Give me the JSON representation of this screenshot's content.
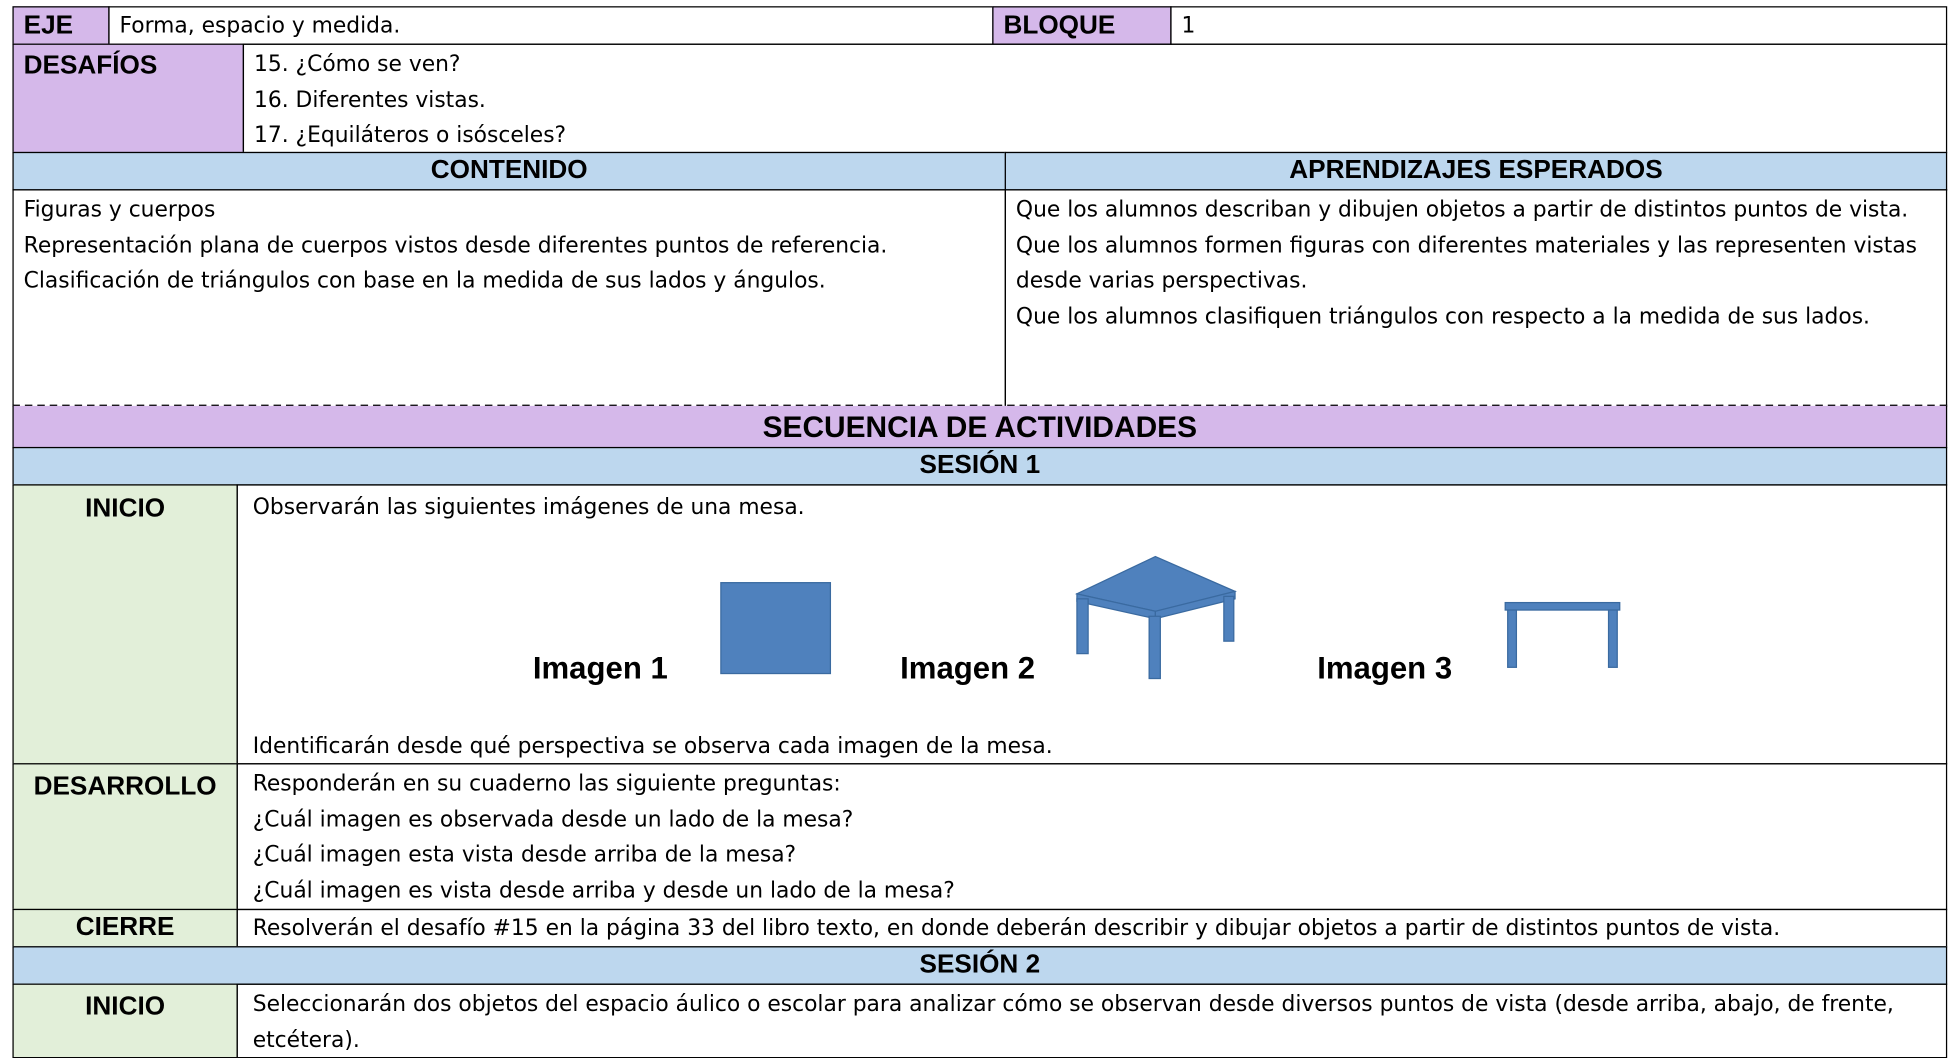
{
  "header": {
    "eje_label": "EJE",
    "eje": "Forma, espacio y medida.",
    "bloque_label": "BLOQUE",
    "bloque": "1"
  },
  "desafios": {
    "label": "DESAFÍOS",
    "items": [
      "15. ¿Cómo se ven?",
      "16. Diferentes vistas.",
      "17. ¿Equiláteros o isósceles?"
    ]
  },
  "contenido": {
    "title": "CONTENIDO",
    "items": [
      "Figuras y cuerpos",
      "Representación plana de cuerpos vistos desde diferentes puntos de referencia.",
      "Clasificación de triángulos con base en la medida de sus lados y ángulos."
    ]
  },
  "aprendizajes": {
    "title": "APRENDIZAJES ESPERADOS",
    "items": [
      "Que los alumnos describan y dibujen objetos a partir de distintos puntos de vista.",
      "Que los alumnos formen figuras con diferentes materiales y las representen vistas desde varias perspectivas.",
      "Que los alumnos clasifiquen triángulos con respecto a la medida de sus lados."
    ]
  },
  "secuencia": {
    "title": "SECUENCIA DE ACTIVIDADES",
    "sesiones": [
      {
        "title": "SESIÓN 1",
        "stages": [
          {
            "label": "INICIO",
            "lines": [
              "Observarán las siguientes imágenes de una mesa.",
              "Identificarán desde qué perspectiva se observa cada imagen de la mesa."
            ],
            "images": [
              "Imagen 1",
              "Imagen 2",
              "Imagen 3"
            ]
          },
          {
            "label": "DESARROLLO",
            "lines": [
              "Responderán en su cuaderno las siguiente preguntas:",
              "¿Cuál imagen es observada desde un lado de la mesa?",
              "¿Cuál imagen esta vista desde arriba de la mesa?",
              "¿Cuál imagen es vista desde arriba y desde un lado de la mesa?"
            ]
          },
          {
            "label": "CIERRE",
            "lines": [
              "Resolverán el desafío #15 en la página 33 del libro texto, en donde deberán describir y dibujar objetos a partir de distintos puntos de vista."
            ]
          }
        ]
      },
      {
        "title": "SESIÓN 2",
        "stages": [
          {
            "label": "INICIO",
            "lines": [
              "Seleccionarán dos objetos del espacio áulico o escolar para analizar cómo se observan desde diversos puntos de vista (desde arriba, abajo, de frente, etcétera)."
            ]
          }
        ]
      }
    ]
  }
}
